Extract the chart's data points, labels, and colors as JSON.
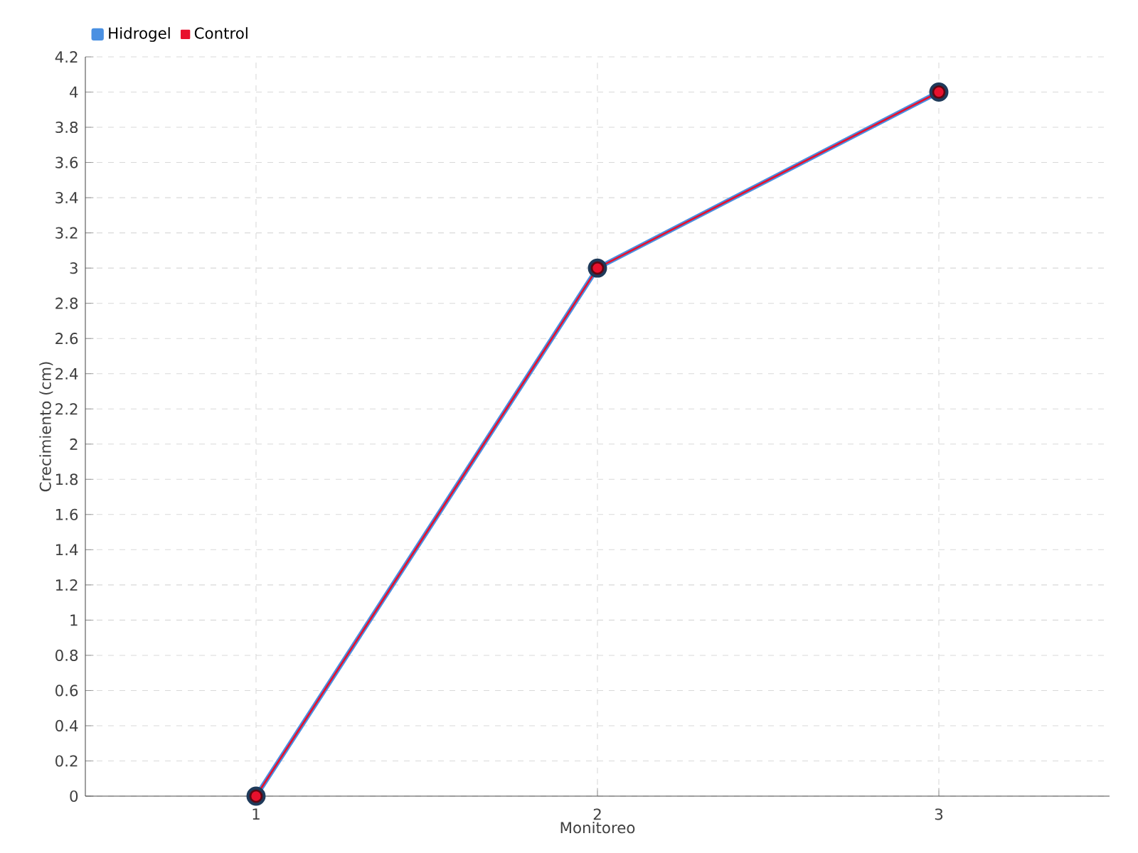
{
  "chart_data": {
    "type": "line",
    "xlabel": "Monitoreo",
    "ylabel": "Crecimiento (cm)",
    "categories": [
      "1",
      "2",
      "3"
    ],
    "series": [
      {
        "name": "Hidrogel",
        "color": "#4a90e2",
        "values": [
          0,
          3,
          4
        ]
      },
      {
        "name": "Control",
        "color": "#e8112d",
        "values": [
          0,
          3,
          4
        ]
      }
    ],
    "ylim": [
      0,
      4.2
    ],
    "yticks": [
      0,
      0.2,
      0.4,
      0.6,
      0.8,
      1,
      1.2,
      1.4,
      1.6,
      1.8,
      2,
      2.2,
      2.4,
      2.6,
      2.8,
      3,
      3.2,
      3.4,
      3.6,
      3.8,
      4,
      4.2
    ],
    "grid": true,
    "legend": "top left",
    "marker": "circle",
    "line_style": "solid"
  }
}
